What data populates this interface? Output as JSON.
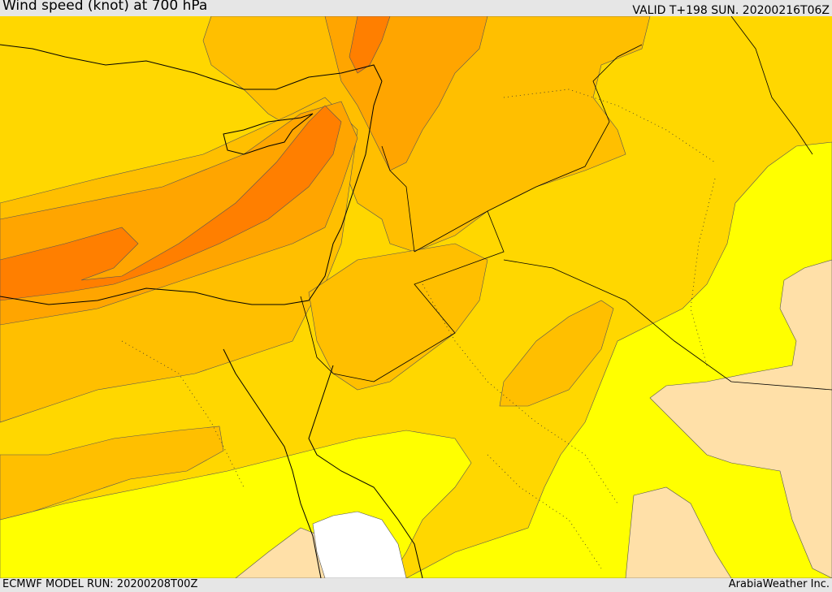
{
  "header": {
    "title": "Wind speed (knot) at 700 hPa",
    "valid_time": "VALID T+198 SUN. 20200216T06Z"
  },
  "footer": {
    "model_run": "ECMWF MODEL RUN: 20200208T00Z",
    "credit": "ArabiaWeather Inc."
  },
  "colors": {
    "band_10_15": "#ffffff",
    "band_15_20": "#ffe0a8",
    "band_20_25": "#ffff00",
    "band_25_30": "#ffd700",
    "band_30_35": "#ffbf00",
    "band_35_40": "#ffa500",
    "band_40_45": "#ff7f00",
    "coastline": "#000000",
    "borders": "#000000"
  }
}
